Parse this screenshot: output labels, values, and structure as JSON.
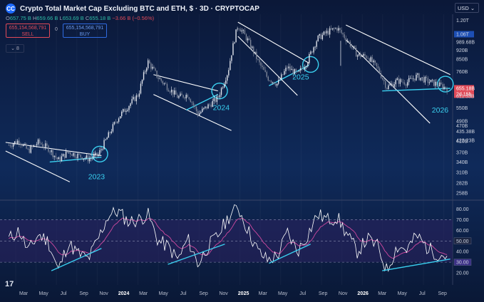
{
  "header": {
    "title": "Crypto Total Market Cap Excluding BTC and ETH, $ · 3D · CRYPTOCAP",
    "logo_text": "CC",
    "ohlc": [
      {
        "label": "O",
        "value": "657.75 B"
      },
      {
        "label": "H",
        "value": "659.66 B"
      },
      {
        "label": "L",
        "value": "653.69 B"
      },
      {
        "label": "C",
        "value": "655.18 B"
      }
    ],
    "change": "−3.66 B (−0.56%)",
    "sell_price": "655,154,568,791",
    "sell_label": "SELL",
    "buy_price": "655,154,568,791",
    "buy_label": "BUY",
    "spread": "0",
    "indicator_toggle": "⌄ 8",
    "currency": "USD ⌄"
  },
  "colors": {
    "background": "#0a1530",
    "candle_up": "#e6e9f0",
    "candle_down": "#7f8799",
    "trendline": "#ffffff",
    "support": "#3ad0f0",
    "rsi_line": "#ffffff",
    "rsi_ma": "#d04aa0",
    "rsi_band": "#2c2360",
    "price_tag": "#e04a58",
    "blue_tag": "#1d4fb5"
  },
  "chart_data": [
    {
      "type": "candlestick",
      "title": "Crypto Total Market Cap Excluding BTC and ETH, $ · 3D · CRYPTOCAP",
      "y_axis_labels": [
        "1.20T",
        "1.06T",
        "989.68B",
        "920B",
        "850B",
        "760B",
        "655.18B",
        "611.53B",
        "550B",
        "490B",
        "470B",
        "423.23B",
        "435.38B",
        "410B",
        "370B",
        "340B",
        "310B",
        "282B",
        "258B"
      ],
      "last_price_tag": "655.18B",
      "countdown_tag": "2d 15h",
      "x_axis_labels": [
        "Mar",
        "May",
        "Jul",
        "Sep",
        "Nov",
        "2024",
        "Mar",
        "May",
        "Jul",
        "Sep",
        "Nov",
        "2025",
        "Mar",
        "May",
        "Jul",
        "Sep",
        "Nov",
        "2026",
        "Mar",
        "May",
        "Jul",
        "Sep"
      ],
      "pattern_labels": [
        "2023",
        "2024",
        "2025",
        "2026"
      ],
      "series": [
        {
          "name": "",
          "values": [
            [
              "2023-01-15",
              395
            ],
            [
              "2023-02-15",
              412
            ],
            [
              "2023-03-15",
              375
            ],
            [
              "2023-04-15",
              405
            ],
            [
              "2023-05-15",
              385
            ],
            [
              "2023-06-15",
              345
            ],
            [
              "2023-07-15",
              372
            ],
            [
              "2023-08-15",
              360
            ],
            [
              "2023-09-15",
              350
            ],
            [
              "2023-10-15",
              362
            ],
            [
              "2023-11-15",
              430
            ],
            [
              "2023-12-15",
              505
            ],
            [
              "2024-01-15",
              560
            ],
            [
              "2024-02-15",
              620
            ],
            [
              "2024-03-15",
              830
            ],
            [
              "2024-04-15",
              720
            ],
            [
              "2024-05-15",
              660
            ],
            [
              "2024-06-15",
              605
            ],
            [
              "2024-07-15",
              620
            ],
            [
              "2024-08-15",
              520
            ],
            [
              "2024-09-15",
              560
            ],
            [
              "2024-10-15",
              600
            ],
            [
              "2024-11-15",
              760
            ],
            [
              "2024-12-15",
              1150
            ],
            [
              "2025-01-15",
              1000
            ],
            [
              "2025-02-15",
              830
            ],
            [
              "2025-03-15",
              720
            ],
            [
              "2025-04-15",
              680
            ],
            [
              "2025-05-15",
              790
            ],
            [
              "2025-06-15",
              740
            ],
            [
              "2025-07-15",
              830
            ],
            [
              "2025-08-15",
              1020
            ],
            [
              "2025-09-15",
              1080
            ],
            [
              "2025-10-15",
              1120
            ],
            [
              "2025-11-15",
              1000
            ],
            [
              "2025-12-15",
              880
            ],
            [
              "2026-01-15",
              870
            ],
            [
              "2026-02-15",
              780
            ],
            [
              "2026-03-15",
              660
            ],
            [
              "2026-04-15",
              700
            ],
            [
              "2026-05-15",
              690
            ],
            [
              "2026-06-15",
              730
            ],
            [
              "2026-07-15",
              700
            ],
            [
              "2026-08-15",
              680
            ],
            [
              "2026-09-15",
              655
            ]
          ]
        }
      ]
    },
    {
      "type": "line",
      "title": "",
      "y_axis_labels": [
        "80.00",
        "70.00",
        "60.00",
        "50.00",
        "40.00",
        "30.00",
        "20.00"
      ],
      "band": [
        30,
        70
      ],
      "highlight_tags": [
        "50.00",
        "30.00"
      ],
      "series": [
        {
          "name": "",
          "values": [
            [
              "2023-01-15",
              52
            ],
            [
              "2023-02-15",
              60
            ],
            [
              "2023-03-15",
              40
            ],
            [
              "2023-04-15",
              56
            ],
            [
              "2023-05-15",
              50
            ],
            [
              "2023-06-15",
              22
            ],
            [
              "2023-07-15",
              48
            ],
            [
              "2023-08-15",
              38
            ],
            [
              "2023-09-15",
              33
            ],
            [
              "2023-10-15",
              52
            ],
            [
              "2023-11-15",
              74
            ],
            [
              "2023-12-15",
              78
            ],
            [
              "2024-01-15",
              68
            ],
            [
              "2024-02-15",
              70
            ],
            [
              "2024-03-15",
              75
            ],
            [
              "2024-04-15",
              50
            ],
            [
              "2024-05-15",
              45
            ],
            [
              "2024-06-15",
              32
            ],
            [
              "2024-07-15",
              52
            ],
            [
              "2024-08-15",
              28
            ],
            [
              "2024-09-15",
              45
            ],
            [
              "2024-10-15",
              55
            ],
            [
              "2024-11-15",
              72
            ],
            [
              "2024-12-15",
              82
            ],
            [
              "2025-01-15",
              60
            ],
            [
              "2025-02-15",
              40
            ],
            [
              "2025-03-15",
              32
            ],
            [
              "2025-04-15",
              36
            ],
            [
              "2025-05-15",
              58
            ],
            [
              "2025-06-15",
              40
            ],
            [
              "2025-07-15",
              55
            ],
            [
              "2025-08-15",
              75
            ],
            [
              "2025-09-15",
              70
            ],
            [
              "2025-10-15",
              72
            ],
            [
              "2025-11-15",
              55
            ],
            [
              "2025-12-15",
              40
            ],
            [
              "2026-01-15",
              52
            ],
            [
              "2026-02-15",
              45
            ],
            [
              "2026-03-15",
              22
            ],
            [
              "2026-04-15",
              45
            ],
            [
              "2026-05-15",
              42
            ],
            [
              "2026-06-15",
              55
            ],
            [
              "2026-07-15",
              44
            ],
            [
              "2026-08-15",
              38
            ],
            [
              "2026-09-15",
              36
            ]
          ]
        }
      ]
    }
  ],
  "footer": {
    "tv_logo": "17"
  }
}
